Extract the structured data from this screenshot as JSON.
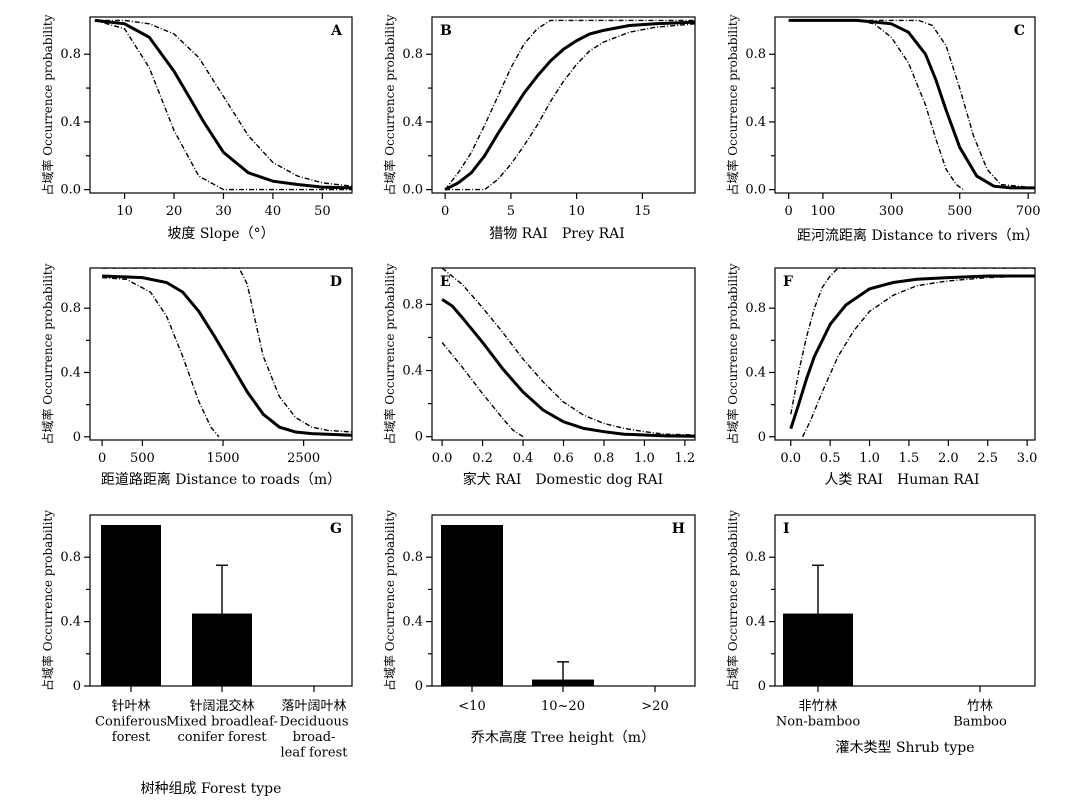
{
  "figure": {
    "y_axis_label": "占域率 Occurrence probability"
  },
  "chart_data": [
    {
      "id": "A",
      "type": "line",
      "xlabel": "坡度 Slope（°）",
      "ylabel": "占域率 Occurrence probability",
      "xlim": [
        3,
        56
      ],
      "ylim": [
        -0.02,
        1.02
      ],
      "xticks": [
        10,
        20,
        30,
        40,
        50
      ],
      "xtick_labels": [
        "10",
        "20",
        "30",
        "40",
        "50"
      ],
      "yticks": [
        0,
        0.4,
        0.8
      ],
      "ytick_labels": [
        "0.0",
        "0.4",
        "0.8"
      ],
      "series": [
        {
          "name": "mean",
          "x": [
            4,
            10,
            15,
            20,
            23,
            26,
            30,
            35,
            40,
            45,
            50,
            56
          ],
          "y": [
            1.0,
            0.98,
            0.9,
            0.7,
            0.55,
            0.4,
            0.22,
            0.1,
            0.05,
            0.03,
            0.015,
            0.01
          ]
        },
        {
          "name": "upper 95% CI",
          "x": [
            4,
            10,
            15,
            20,
            25,
            30,
            35,
            40,
            45,
            50,
            56
          ],
          "y": [
            1.0,
            1.0,
            0.98,
            0.92,
            0.78,
            0.55,
            0.32,
            0.16,
            0.08,
            0.04,
            0.02
          ]
        },
        {
          "name": "lower 95% CI",
          "x": [
            4,
            10,
            15,
            20,
            25,
            30,
            35,
            40,
            45,
            50,
            56
          ],
          "y": [
            1.0,
            0.95,
            0.72,
            0.35,
            0.08,
            0.0,
            0.0,
            0.0,
            0.0,
            0.0,
            0.0
          ]
        }
      ]
    },
    {
      "id": "B",
      "type": "line",
      "xlabel": "猎物 RAI　Prey RAI",
      "ylabel": "占域率 Occurrence probability",
      "xlim": [
        -1,
        19
      ],
      "ylim": [
        -0.02,
        1.02
      ],
      "xticks": [
        0,
        5,
        10,
        15
      ],
      "xtick_labels": [
        "0",
        "5",
        "10",
        "15"
      ],
      "yticks": [
        0,
        0.4,
        0.8
      ],
      "ytick_labels": [
        "0.0",
        "0.4",
        "0.8"
      ],
      "series": [
        {
          "name": "mean",
          "x": [
            0,
            1,
            2,
            3,
            4,
            5,
            6,
            7,
            8,
            9,
            10,
            11,
            12,
            14,
            16,
            19
          ],
          "y": [
            0.0,
            0.04,
            0.1,
            0.2,
            0.33,
            0.45,
            0.57,
            0.67,
            0.76,
            0.83,
            0.88,
            0.92,
            0.94,
            0.97,
            0.98,
            0.99
          ]
        },
        {
          "name": "upper 95% CI",
          "x": [
            0,
            1,
            2,
            3,
            4,
            5,
            6,
            7,
            8,
            9,
            10,
            12,
            19
          ],
          "y": [
            0.0,
            0.1,
            0.22,
            0.38,
            0.55,
            0.72,
            0.86,
            0.95,
            1.0,
            1.0,
            1.0,
            1.0,
            1.0
          ]
        },
        {
          "name": "lower 95% CI",
          "x": [
            0,
            3,
            4,
            5,
            6,
            7,
            8,
            9,
            10,
            11,
            12,
            14,
            16,
            19
          ],
          "y": [
            0.0,
            0.0,
            0.06,
            0.15,
            0.26,
            0.38,
            0.52,
            0.64,
            0.74,
            0.82,
            0.87,
            0.93,
            0.96,
            0.98
          ]
        }
      ]
    },
    {
      "id": "C",
      "type": "line",
      "xlabel": "距河流距离 Distance to rivers（m）",
      "ylabel": "占域率 Occurrence probability",
      "xlim": [
        -40,
        720
      ],
      "ylim": [
        -0.02,
        1.02
      ],
      "xticks": [
        0,
        100,
        300,
        500,
        700
      ],
      "xtick_labels": [
        "0",
        "100",
        "300",
        "500",
        "700"
      ],
      "yticks": [
        0,
        0.4,
        0.8
      ],
      "ytick_labels": [
        "0.0",
        "0.4",
        "0.8"
      ],
      "series": [
        {
          "name": "mean",
          "x": [
            0,
            200,
            300,
            350,
            400,
            430,
            460,
            500,
            550,
            600,
            650,
            720
          ],
          "y": [
            1.0,
            1.0,
            0.98,
            0.93,
            0.8,
            0.65,
            0.47,
            0.25,
            0.08,
            0.02,
            0.01,
            0.01
          ]
        },
        {
          "name": "upper 95% CI",
          "x": [
            0,
            250,
            330,
            380,
            420,
            460,
            500,
            540,
            580,
            620,
            720
          ],
          "y": [
            1.0,
            1.0,
            1.0,
            1.0,
            0.97,
            0.85,
            0.6,
            0.32,
            0.12,
            0.03,
            0.01
          ]
        },
        {
          "name": "lower 95% CI",
          "x": [
            0,
            200,
            250,
            300,
            350,
            400,
            430,
            460,
            490,
            510
          ],
          "y": [
            1.0,
            1.0,
            0.98,
            0.9,
            0.75,
            0.5,
            0.3,
            0.12,
            0.03,
            0.0
          ]
        }
      ]
    },
    {
      "id": "D",
      "type": "line",
      "xlabel": "距道路距离 Distance to roads（m）",
      "ylabel": "占域率 Occurrence probability",
      "xlim": [
        -150,
        3100
      ],
      "ylim": [
        -0.02,
        1.05
      ],
      "xticks": [
        0,
        500,
        1500,
        2500
      ],
      "xtick_labels": [
        "0",
        "500",
        "1500",
        "2500"
      ],
      "yticks": [
        0,
        0.4,
        0.8
      ],
      "ytick_labels": [
        "0",
        "0.4",
        "0.8"
      ],
      "series": [
        {
          "name": "mean",
          "x": [
            0,
            500,
            800,
            1000,
            1200,
            1400,
            1600,
            1800,
            2000,
            2200,
            2400,
            2600,
            3100
          ],
          "y": [
            1.0,
            0.99,
            0.96,
            0.9,
            0.78,
            0.62,
            0.45,
            0.28,
            0.14,
            0.06,
            0.03,
            0.02,
            0.01
          ]
        },
        {
          "name": "upper 95% CI",
          "x": [
            0,
            700,
            1000,
            1500,
            1700,
            1800,
            1900,
            2000,
            2200,
            2400,
            2600,
            2800,
            3100
          ],
          "y": [
            1.05,
            1.05,
            1.05,
            1.05,
            1.05,
            0.95,
            0.72,
            0.5,
            0.25,
            0.12,
            0.06,
            0.04,
            0.03
          ]
        },
        {
          "name": "lower 95% CI",
          "x": [
            0,
            300,
            600,
            800,
            1000,
            1200,
            1350,
            1450
          ],
          "y": [
            0.99,
            0.98,
            0.9,
            0.75,
            0.5,
            0.22,
            0.06,
            0.0
          ]
        }
      ]
    },
    {
      "id": "E",
      "type": "line",
      "xlabel": "家犬 RAI　Domestic dog RAI",
      "ylabel": "占域率 Occurrence probability",
      "xlim": [
        -0.05,
        1.25
      ],
      "ylim": [
        -0.02,
        1.02
      ],
      "xticks": [
        0,
        0.2,
        0.4,
        0.6,
        0.8,
        1.0,
        1.2
      ],
      "xtick_labels": [
        "0.0",
        "0.2",
        "0.4",
        "0.6",
        "0.8",
        "1.0",
        "1.2"
      ],
      "yticks": [
        0,
        0.4,
        0.8
      ],
      "ytick_labels": [
        "0",
        "0.4",
        "0.8"
      ],
      "series": [
        {
          "name": "mean",
          "x": [
            0,
            0.05,
            0.1,
            0.2,
            0.3,
            0.4,
            0.5,
            0.6,
            0.7,
            0.8,
            0.9,
            1.0,
            1.1,
            1.25
          ],
          "y": [
            0.83,
            0.79,
            0.72,
            0.57,
            0.41,
            0.27,
            0.16,
            0.09,
            0.05,
            0.03,
            0.015,
            0.01,
            0.005,
            0.003
          ]
        },
        {
          "name": "upper 95% CI",
          "x": [
            0,
            0.1,
            0.2,
            0.3,
            0.4,
            0.5,
            0.6,
            0.7,
            0.8,
            0.9,
            1.0,
            1.1,
            1.25
          ],
          "y": [
            1.02,
            0.92,
            0.78,
            0.63,
            0.47,
            0.33,
            0.21,
            0.13,
            0.08,
            0.05,
            0.03,
            0.015,
            0.01
          ]
        },
        {
          "name": "lower 95% CI",
          "x": [
            0,
            0.1,
            0.2,
            0.3,
            0.35,
            0.4
          ],
          "y": [
            0.57,
            0.42,
            0.26,
            0.11,
            0.04,
            0.0
          ]
        }
      ]
    },
    {
      "id": "F",
      "type": "line",
      "xlabel": "人类 RAI　Human RAI",
      "ylabel": "占域率 Occurrence probability",
      "xlim": [
        -0.2,
        3.1
      ],
      "ylim": [
        -0.02,
        1.05
      ],
      "xticks": [
        0,
        0.5,
        1.0,
        1.5,
        2.0,
        2.5,
        3.0
      ],
      "xtick_labels": [
        "0.0",
        "0.5",
        "1.0",
        "1.5",
        "2.0",
        "2.5",
        "3.0"
      ],
      "yticks": [
        0,
        0.4,
        0.8
      ],
      "ytick_labels": [
        "0",
        "0.4",
        "0.8"
      ],
      "series": [
        {
          "name": "mean",
          "x": [
            0,
            0.1,
            0.2,
            0.3,
            0.5,
            0.7,
            1.0,
            1.3,
            1.6,
            2.0,
            2.5,
            3.1
          ],
          "y": [
            0.05,
            0.2,
            0.36,
            0.5,
            0.7,
            0.82,
            0.92,
            0.96,
            0.98,
            0.99,
            1.0,
            1.0
          ]
        },
        {
          "name": "upper 95% CI",
          "x": [
            0,
            0.1,
            0.2,
            0.3,
            0.4,
            0.5,
            0.6,
            0.8,
            3.1
          ],
          "y": [
            0.14,
            0.4,
            0.62,
            0.8,
            0.93,
            1.0,
            1.05,
            1.05,
            1.05
          ]
        },
        {
          "name": "lower 95% CI",
          "x": [
            0.15,
            0.25,
            0.4,
            0.6,
            0.8,
            1.0,
            1.3,
            1.6,
            2.0,
            2.5,
            3.1
          ],
          "y": [
            0.0,
            0.1,
            0.28,
            0.5,
            0.66,
            0.78,
            0.88,
            0.94,
            0.97,
            0.99,
            1.0
          ]
        }
      ]
    },
    {
      "id": "G",
      "type": "bar",
      "xlabel": "树种组成 Forest type",
      "ylabel": "占域率 Occurrence probability",
      "ylim": [
        0,
        1.0
      ],
      "yticks": [
        0,
        0.4,
        0.8
      ],
      "ytick_labels": [
        "0",
        "0.4",
        "0.8"
      ],
      "categories": [
        [
          "针叶林",
          "Coniferous",
          "forest"
        ],
        [
          "针阔混交林",
          "Mixed broadleaf-",
          "conifer forest"
        ],
        [
          "落叶阔叶林",
          "Deciduous",
          "broad-",
          "leaf forest"
        ]
      ],
      "values": [
        1.0,
        0.45,
        0.0
      ],
      "error_upper": [
        1.0,
        0.75,
        0.0
      ]
    },
    {
      "id": "H",
      "type": "bar",
      "xlabel": "乔木高度 Tree height（m）",
      "ylabel": "占域率 Occurrence probability",
      "ylim": [
        0,
        1.0
      ],
      "yticks": [
        0,
        0.4,
        0.8
      ],
      "ytick_labels": [
        "0",
        "0.4",
        "0.8"
      ],
      "categories": [
        [
          "<10"
        ],
        [
          "10~20"
        ],
        [
          ">20"
        ]
      ],
      "values": [
        1.0,
        0.04,
        0.0
      ],
      "error_upper": [
        1.0,
        0.15,
        0.0
      ]
    },
    {
      "id": "I",
      "type": "bar",
      "xlabel": "灌木类型 Shrub type",
      "ylabel": "占域率 Occurrence probability",
      "ylim": [
        0,
        1.0
      ],
      "yticks": [
        0,
        0.4,
        0.8
      ],
      "ytick_labels": [
        "0",
        "0.4",
        "0.8"
      ],
      "categories": [
        [
          "非竹林",
          "Non-bamboo"
        ],
        [
          "竹林",
          "Bamboo"
        ]
      ],
      "values": [
        0.45,
        0.0
      ],
      "error_upper": [
        0.75,
        0.0
      ]
    }
  ]
}
